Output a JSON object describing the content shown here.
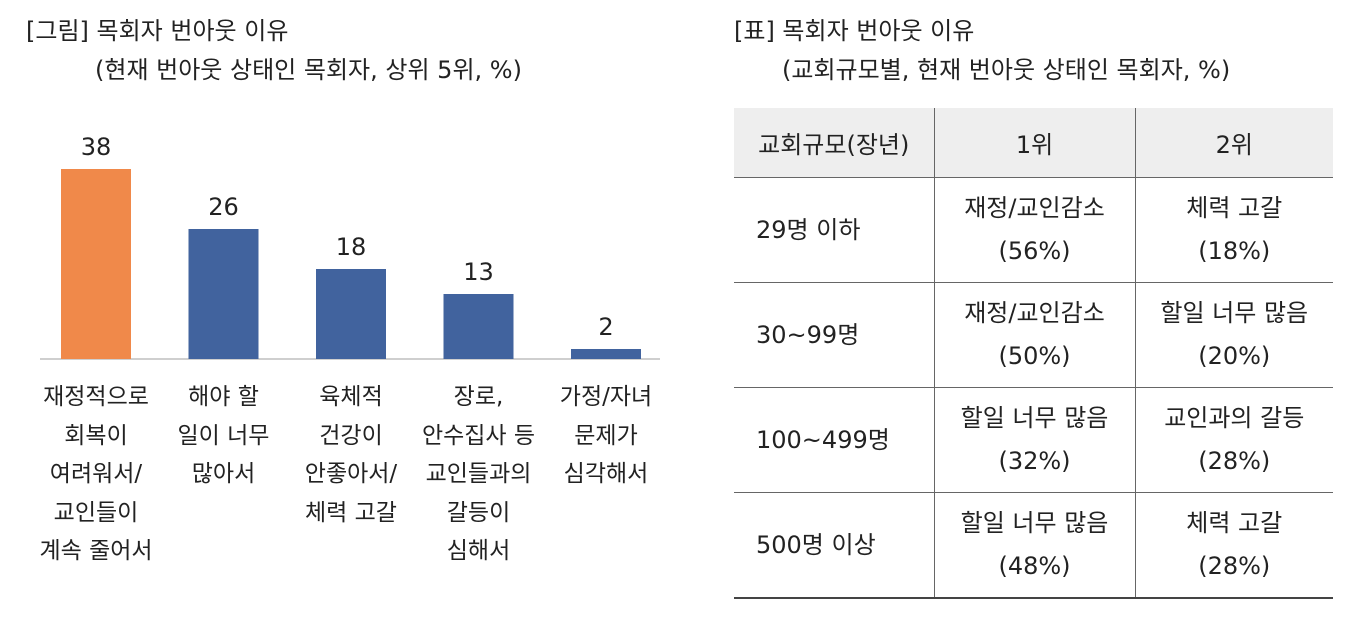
{
  "left_panel": {
    "title": "[그림] 목회자 번아웃 이유",
    "subtitle": "(현재 번아웃 상태인 목회자, 상위 5위, %)"
  },
  "chart_data": {
    "type": "bar",
    "categories": [
      "재정적으로\n회복이\n여려워서/\n교인들이\n계속 줄어서",
      "해야 할\n일이 너무\n많아서",
      "육체적\n건강이\n안좋아서/\n체력 고갈",
      "장로,\n안수집사 등\n교인들과의\n갈등이\n심해서",
      "가정/자녀\n문제가\n심각해서"
    ],
    "values": [
      38,
      26,
      18,
      13,
      2
    ],
    "ylim": [
      0,
      40
    ],
    "colors": [
      "#F0894A",
      "#41639E",
      "#41639E",
      "#41639E",
      "#41639E"
    ],
    "grid": false,
    "legend": "none"
  },
  "right_panel": {
    "title": "[표] 목회자 번아웃 이유",
    "subtitle": "(교회규모별, 현재 번아웃 상태인 목회자, %)",
    "table": {
      "headers": [
        "교회규모(장년)",
        "1위",
        "2위"
      ],
      "rows": [
        {
          "size": "29명 이하",
          "first_reason": "재정/교인감소",
          "first_pct": "(56%)",
          "second_reason": "체력 고갈",
          "second_pct": "(18%)"
        },
        {
          "size": "30~99명",
          "first_reason": "재정/교인감소",
          "first_pct": "(50%)",
          "second_reason": "할일 너무 많음",
          "second_pct": "(20%)"
        },
        {
          "size": "100~499명",
          "first_reason": "할일 너무 많음",
          "first_pct": "(32%)",
          "second_reason": "교인과의 갈등",
          "second_pct": "(28%)"
        },
        {
          "size": "500명 이상",
          "first_reason": "할일 너무 많음",
          "first_pct": "(48%)",
          "second_reason": "체력 고갈",
          "second_pct": "(28%)"
        }
      ]
    }
  }
}
